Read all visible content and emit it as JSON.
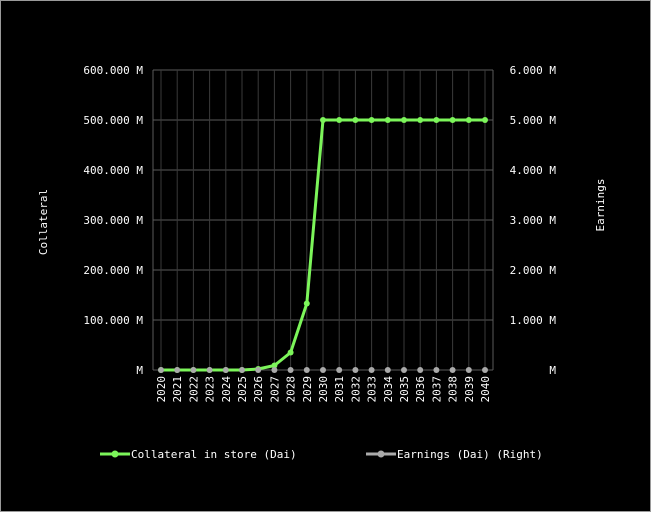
{
  "chart_data": {
    "type": "line",
    "title": "",
    "xlabel": "",
    "ylabel": "Collateral",
    "y2label": "Earnings",
    "categories": [
      "2020",
      "2021",
      "2022",
      "2023",
      "2024",
      "2025",
      "2026",
      "2027",
      "2028",
      "2029",
      "2030",
      "2031",
      "2032",
      "2033",
      "2034",
      "2035",
      "2036",
      "2037",
      "2038",
      "2039",
      "2040"
    ],
    "ylim": [
      0,
      600000000
    ],
    "y2lim": [
      0,
      6000000
    ],
    "yticks": [
      "M",
      "100.000 M",
      "200.000 M",
      "300.000 M",
      "400.000 M",
      "500.000 M",
      "600.000 M"
    ],
    "y2ticks": [
      "M",
      "1.000 M",
      "2.000 M",
      "3.000 M",
      "4.000 M",
      "5.000 M",
      "6.000 M"
    ],
    "grid": true,
    "legend_position": "bottom",
    "series": [
      {
        "name": "Collateral in store (Dai)",
        "axis": "left",
        "color": "#7cf55a",
        "values": [
          0,
          0,
          0,
          0,
          0,
          0,
          2000000,
          9000000,
          35000000,
          133000000,
          500000000,
          500000000,
          500000000,
          500000000,
          500000000,
          500000000,
          500000000,
          500000000,
          500000000,
          500000000,
          500000000
        ]
      },
      {
        "name": "Earnings (Dai) (Right)",
        "axis": "right",
        "color": "#aaaaaa",
        "values": [
          0,
          0,
          0,
          0,
          0,
          0,
          0,
          0,
          0,
          0,
          0,
          0,
          0,
          0,
          0,
          0,
          0,
          0,
          0,
          0,
          0
        ]
      }
    ]
  }
}
